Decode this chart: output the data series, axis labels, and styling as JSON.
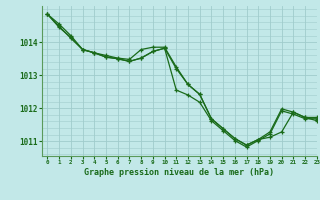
{
  "xlabel": "Graphe pression niveau de la mer (hPa)",
  "background_color": "#c2e8e8",
  "grid_color": "#a0cccc",
  "line_color": "#1a6b1a",
  "spine_color": "#5a9a5a",
  "xlim": [
    -0.5,
    23
  ],
  "ylim": [
    1010.55,
    1015.1
  ],
  "yticks": [
    1011,
    1012,
    1013,
    1014
  ],
  "xticks": [
    0,
    1,
    2,
    3,
    4,
    5,
    6,
    7,
    8,
    9,
    10,
    11,
    12,
    13,
    14,
    15,
    16,
    17,
    18,
    19,
    20,
    21,
    22,
    23
  ],
  "series": [
    [
      1014.85,
      1014.55,
      1014.2,
      1013.78,
      1013.68,
      1013.6,
      1013.52,
      1013.48,
      1013.78,
      1013.85,
      1013.85,
      1013.25,
      1012.72,
      1012.42,
      1011.68,
      1011.38,
      1011.08,
      1010.88,
      1011.05,
      1011.28,
      1011.98,
      1011.88,
      1011.72,
      1011.72
    ],
    [
      1014.85,
      1014.45,
      1014.15,
      1013.78,
      1013.68,
      1013.55,
      1013.5,
      1013.42,
      1013.52,
      1013.72,
      1013.82,
      1012.55,
      1012.4,
      1012.18,
      1011.62,
      1011.32,
      1011.02,
      1010.82,
      1011.02,
      1011.22,
      1011.92,
      1011.82,
      1011.68,
      1011.68
    ],
    [
      1014.85,
      1014.48,
      1014.12,
      1013.78,
      1013.68,
      1013.55,
      1013.5,
      1013.42,
      1013.52,
      1013.72,
      1013.82,
      1013.2,
      1012.72,
      1012.42,
      1011.68,
      1011.38,
      1011.08,
      1010.88,
      1011.05,
      1011.12,
      1011.28,
      1011.88,
      1011.72,
      1011.62
    ]
  ]
}
